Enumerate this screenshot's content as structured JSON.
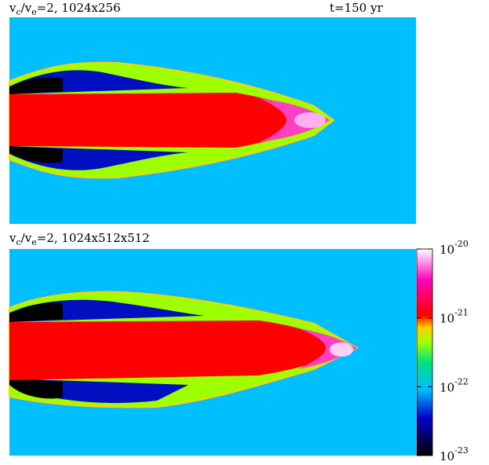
{
  "panels": [
    {
      "label": [
        "v",
        "c",
        "/v",
        "e",
        "=2, 1024x256"
      ],
      "time": "t=150 yr"
    },
    {
      "label": [
        "v",
        "c",
        "/v",
        "e",
        "=2, 1024x512x512"
      ]
    }
  ],
  "colorbar": {
    "scale": "log",
    "lim": [
      1e-23,
      1e-20
    ],
    "ticks": [
      {
        "value": 1e-20,
        "label": "10",
        "exponent": "-20"
      },
      {
        "value": 1e-21,
        "label": "10",
        "exponent": "-21"
      },
      {
        "value": 1e-22,
        "label": "10",
        "exponent": "-22"
      },
      {
        "value": 1e-23,
        "label": "10",
        "exponent": "-23"
      }
    ]
  }
}
